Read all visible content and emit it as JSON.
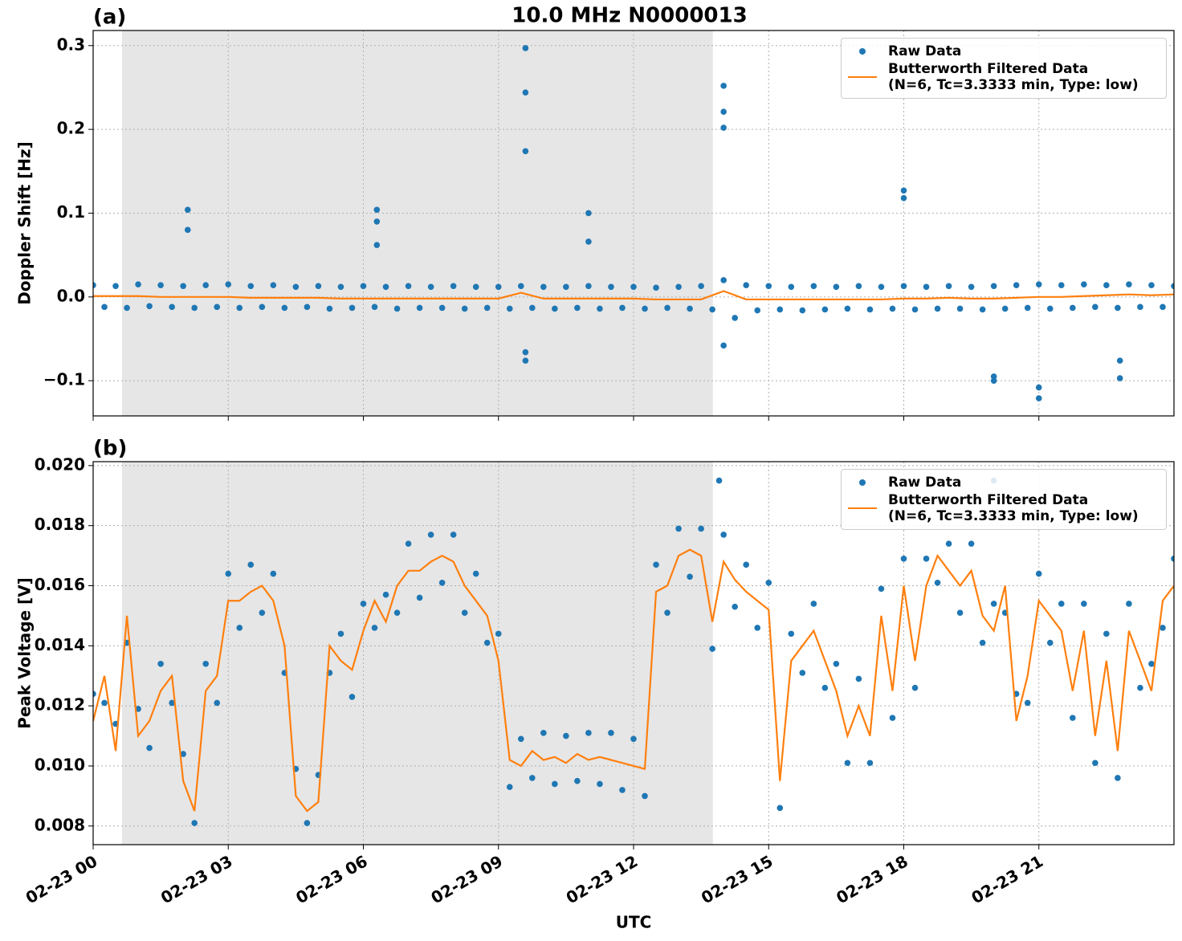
{
  "chart_data": [
    {
      "type": "line",
      "title": "10.0 MHz N0000013",
      "panel_label": "(a)",
      "ylabel": "Doppler Shift [Hz]",
      "xlim": [
        0,
        24
      ],
      "xticks": [
        0,
        3,
        6,
        9,
        12,
        15,
        18,
        21
      ],
      "ylim": [
        -0.142,
        0.318
      ],
      "yticks": [
        {
          "value": -0.1,
          "label": "−0.1"
        },
        {
          "value": 0,
          "label": "0.0"
        },
        0.1,
        0.2,
        0.3
      ],
      "grid": true,
      "shaded_span": [
        0.64,
        13.76
      ],
      "shade_color": "#e6e6e6",
      "legend": "upper right",
      "series": [
        {
          "name": "Raw Data",
          "color": "#1f77b4",
          "marker": true,
          "x": [
            0,
            0.25,
            0.5,
            0.75,
            1,
            1.25,
            1.5,
            1.75,
            2,
            2.25,
            2.5,
            2.75,
            3,
            3.25,
            3.5,
            3.75,
            4,
            4.25,
            4.5,
            4.75,
            5,
            5.25,
            5.5,
            5.75,
            6,
            6.25,
            6.5,
            6.75,
            7,
            7.25,
            7.5,
            7.75,
            8,
            8.25,
            8.5,
            8.75,
            9,
            9.25,
            9.5,
            9.75,
            10,
            10.25,
            10.5,
            10.75,
            11,
            11.25,
            11.5,
            11.75,
            12,
            12.25,
            12.5,
            12.75,
            13,
            13.25,
            13.5,
            13.75,
            14,
            14.25,
            14.5,
            14.75,
            15,
            15.25,
            15.5,
            15.75,
            16,
            16.25,
            16.5,
            16.75,
            17,
            17.25,
            17.5,
            17.75,
            18,
            18.25,
            18.5,
            18.75,
            19,
            19.25,
            19.5,
            19.75,
            20,
            20.25,
            20.5,
            20.75,
            21,
            21.25,
            21.5,
            21.75,
            22,
            22.25,
            22.5,
            22.75,
            23,
            23.25,
            23.5,
            23.75,
            24,
            2.1,
            2.1,
            6.3,
            6.3,
            6.3,
            9.6,
            9.6,
            9.6,
            9.6,
            9.6,
            11,
            11,
            14,
            14,
            14,
            14,
            18,
            18,
            20,
            20,
            21,
            21,
            22.8,
            22.8
          ],
          "values": [
            0.014,
            -0.012,
            0.013,
            -0.013,
            0.015,
            -0.011,
            0.014,
            -0.012,
            0.013,
            -0.013,
            0.014,
            -0.012,
            0.015,
            -0.013,
            0.013,
            -0.012,
            0.014,
            -0.013,
            0.012,
            -0.012,
            0.013,
            -0.014,
            0.012,
            -0.013,
            0.013,
            -0.012,
            0.012,
            -0.014,
            0.013,
            -0.013,
            0.012,
            -0.013,
            0.013,
            -0.014,
            0.012,
            -0.013,
            0.012,
            -0.014,
            0.013,
            -0.013,
            0.012,
            -0.014,
            0.012,
            -0.013,
            0.013,
            -0.014,
            0.012,
            -0.013,
            0.012,
            -0.014,
            0.011,
            -0.013,
            0.012,
            -0.014,
            0.013,
            -0.015,
            0.02,
            -0.025,
            0.014,
            -0.016,
            0.013,
            -0.015,
            0.012,
            -0.016,
            0.013,
            -0.015,
            0.012,
            -0.014,
            0.013,
            -0.015,
            0.012,
            -0.014,
            0.013,
            -0.015,
            0.012,
            -0.014,
            0.013,
            -0.014,
            0.012,
            -0.015,
            0.013,
            -0.014,
            0.014,
            -0.013,
            0.015,
            -0.014,
            0.014,
            -0.013,
            0.015,
            -0.012,
            0.014,
            -0.013,
            0.015,
            -0.012,
            0.014,
            -0.012,
            0.013,
            0.104,
            0.08,
            0.104,
            0.09,
            0.062,
            0.297,
            0.244,
            0.174,
            -0.066,
            -0.076,
            0.1,
            0.066,
            0.252,
            0.221,
            0.202,
            -0.058,
            0.127,
            0.118,
            -0.1,
            -0.095,
            -0.108,
            -0.121,
            -0.076,
            -0.097
          ]
        },
        {
          "name": "Butterworth Filtered Data\n(N=6, Tc=3.3333 min, Type: low)",
          "color": "#ff7f0e",
          "marker": false,
          "x": [
            0,
            0.5,
            1,
            1.5,
            2,
            2.5,
            3,
            3.5,
            4,
            4.5,
            5,
            5.5,
            6,
            6.5,
            7,
            7.5,
            8,
            8.5,
            9,
            9.5,
            10,
            10.5,
            11,
            11.5,
            12,
            12.5,
            13,
            13.5,
            14,
            14.5,
            15,
            15.5,
            16,
            16.5,
            17,
            17.5,
            18,
            18.5,
            19,
            19.5,
            20,
            20.5,
            21,
            21.5,
            22,
            22.5,
            23,
            23.5,
            24
          ],
          "values": [
            0.001,
            0.001,
            0.001,
            0,
            0,
            0,
            0,
            -0.001,
            -0.001,
            -0.001,
            -0.001,
            -0.002,
            -0.002,
            -0.002,
            -0.002,
            -0.002,
            -0.002,
            -0.002,
            -0.002,
            0.005,
            -0.002,
            -0.002,
            -0.002,
            -0.002,
            -0.002,
            -0.003,
            -0.003,
            -0.003,
            0.007,
            -0.003,
            -0.003,
            -0.003,
            -0.003,
            -0.003,
            -0.003,
            -0.003,
            -0.002,
            -0.002,
            -0.001,
            -0.002,
            -0.002,
            -0.001,
            0,
            0,
            0.001,
            0.002,
            0.003,
            0.002,
            0.003
          ]
        }
      ]
    },
    {
      "type": "line",
      "panel_label": "(b)",
      "ylabel": "Peak Voltage [V]",
      "xlabel": "UTC",
      "xlim": [
        0,
        24
      ],
      "xticks": [
        {
          "value": 0,
          "label": "02-23 00"
        },
        {
          "value": 3,
          "label": "02-23 03"
        },
        {
          "value": 6,
          "label": "02-23 06"
        },
        {
          "value": 9,
          "label": "02-23 09"
        },
        {
          "value": 12,
          "label": "02-23 12"
        },
        {
          "value": 15,
          "label": "02-23 15"
        },
        {
          "value": 18,
          "label": "02-23 18"
        },
        {
          "value": 21,
          "label": "02-23 21"
        }
      ],
      "ylim": [
        0.00738,
        0.02013
      ],
      "yticks": [
        {
          "value": 0.008,
          "label": "0.008"
        },
        {
          "value": 0.01,
          "label": "0.010"
        },
        {
          "value": 0.012,
          "label": "0.012"
        },
        {
          "value": 0.014,
          "label": "0.014"
        },
        {
          "value": 0.016,
          "label": "0.016"
        },
        {
          "value": 0.018,
          "label": "0.018"
        },
        {
          "value": 0.02,
          "label": "0.020"
        }
      ],
      "grid": true,
      "shaded_span": [
        0.64,
        13.76
      ],
      "shade_color": "#e6e6e6",
      "legend": "upper right",
      "series": [
        {
          "name": "Raw Data",
          "color": "#1f77b4",
          "marker": true,
          "x": [
            0,
            0.25,
            0.5,
            0.75,
            1,
            1.25,
            1.5,
            1.75,
            2,
            2.25,
            2.5,
            2.75,
            3,
            3.25,
            3.5,
            3.75,
            4,
            4.25,
            4.5,
            4.75,
            5,
            5.25,
            5.5,
            5.75,
            6,
            6.25,
            6.5,
            6.75,
            7,
            7.25,
            7.5,
            7.75,
            8,
            8.25,
            8.5,
            8.75,
            9,
            9.25,
            9.5,
            9.75,
            10,
            10.25,
            10.5,
            10.75,
            11,
            11.25,
            11.5,
            11.75,
            12,
            12.25,
            12.5,
            12.75,
            13,
            13.25,
            13.5,
            13.75,
            14,
            14.25,
            14.5,
            14.75,
            15,
            15.25,
            15.5,
            15.75,
            16,
            16.25,
            16.5,
            16.75,
            17,
            17.25,
            17.5,
            17.75,
            18,
            18.25,
            18.5,
            18.75,
            19,
            19.25,
            19.5,
            19.75,
            20,
            20.25,
            20.5,
            20.75,
            21,
            21.25,
            21.5,
            21.75,
            22,
            22.25,
            22.5,
            22.75,
            23,
            23.25,
            23.5,
            23.75,
            24,
            13.9,
            20
          ],
          "values": [
            0.0124,
            0.0121,
            0.0114,
            0.0141,
            0.0119,
            0.0106,
            0.0134,
            0.0121,
            0.0104,
            0.0081,
            0.0134,
            0.0121,
            0.0164,
            0.0146,
            0.0167,
            0.0151,
            0.0164,
            0.0131,
            0.0099,
            0.0081,
            0.0097,
            0.0131,
            0.0144,
            0.0123,
            0.0154,
            0.0146,
            0.0157,
            0.0151,
            0.0174,
            0.0156,
            0.0177,
            0.0161,
            0.0177,
            0.0151,
            0.0164,
            0.0141,
            0.0144,
            0.0093,
            0.0109,
            0.0096,
            0.0111,
            0.0094,
            0.011,
            0.0095,
            0.0111,
            0.0094,
            0.0111,
            0.0092,
            0.0109,
            0.009,
            0.0167,
            0.0151,
            0.0179,
            0.0163,
            0.0179,
            0.0139,
            0.0177,
            0.0153,
            0.0167,
            0.0146,
            0.0161,
            0.0086,
            0.0144,
            0.0131,
            0.0154,
            0.0126,
            0.0134,
            0.0101,
            0.0129,
            0.0101,
            0.0159,
            0.0116,
            0.0169,
            0.0126,
            0.0169,
            0.0161,
            0.0174,
            0.0151,
            0.0174,
            0.0141,
            0.0154,
            0.0151,
            0.0124,
            0.0121,
            0.0164,
            0.0141,
            0.0154,
            0.0116,
            0.0154,
            0.0101,
            0.0144,
            0.0096,
            0.0154,
            0.0126,
            0.0134,
            0.0146,
            0.0169,
            0.0195,
            0.0195
          ]
        },
        {
          "name": "Butterworth Filtered Data\n(N=6, Tc=3.3333 min, Type: low)",
          "color": "#ff7f0e",
          "marker": false,
          "x": [
            0,
            0.25,
            0.5,
            0.75,
            1,
            1.25,
            1.5,
            1.75,
            2,
            2.25,
            2.5,
            2.75,
            3,
            3.25,
            3.5,
            3.75,
            4,
            4.25,
            4.5,
            4.75,
            5,
            5.25,
            5.5,
            5.75,
            6,
            6.25,
            6.5,
            6.75,
            7,
            7.25,
            7.5,
            7.75,
            8,
            8.25,
            8.5,
            8.75,
            9,
            9.25,
            9.5,
            9.75,
            10,
            10.25,
            10.5,
            10.75,
            11,
            11.25,
            11.5,
            11.75,
            12,
            12.25,
            12.5,
            12.75,
            13,
            13.25,
            13.5,
            13.75,
            14,
            14.25,
            14.5,
            14.75,
            15,
            15.25,
            15.5,
            15.75,
            16,
            16.25,
            16.5,
            16.75,
            17,
            17.25,
            17.5,
            17.75,
            18,
            18.25,
            18.5,
            18.75,
            19,
            19.25,
            19.5,
            19.75,
            20,
            20.25,
            20.5,
            20.75,
            21,
            21.25,
            21.5,
            21.75,
            22,
            22.25,
            22.5,
            22.75,
            23,
            23.25,
            23.5,
            23.75,
            24
          ],
          "values": [
            0.0115,
            0.013,
            0.0105,
            0.015,
            0.011,
            0.0115,
            0.0125,
            0.013,
            0.0095,
            0.0085,
            0.0125,
            0.013,
            0.0155,
            0.0155,
            0.0158,
            0.016,
            0.0155,
            0.014,
            0.009,
            0.0085,
            0.0088,
            0.014,
            0.0135,
            0.0132,
            0.0145,
            0.0155,
            0.0148,
            0.016,
            0.0165,
            0.0165,
            0.0168,
            0.017,
            0.0168,
            0.016,
            0.0155,
            0.015,
            0.0135,
            0.0102,
            0.01,
            0.0105,
            0.0102,
            0.0103,
            0.0101,
            0.0104,
            0.0102,
            0.0103,
            0.0102,
            0.0101,
            0.01,
            0.0099,
            0.0158,
            0.016,
            0.017,
            0.0172,
            0.017,
            0.0148,
            0.0168,
            0.0162,
            0.0158,
            0.0155,
            0.0152,
            0.0095,
            0.0135,
            0.014,
            0.0145,
            0.0135,
            0.0125,
            0.011,
            0.012,
            0.011,
            0.015,
            0.0125,
            0.016,
            0.0135,
            0.016,
            0.017,
            0.0165,
            0.016,
            0.0165,
            0.015,
            0.0145,
            0.016,
            0.0115,
            0.013,
            0.0155,
            0.015,
            0.0145,
            0.0125,
            0.0145,
            0.011,
            0.0135,
            0.0105,
            0.0145,
            0.0135,
            0.0125,
            0.0155,
            0.016
          ]
        }
      ]
    }
  ]
}
